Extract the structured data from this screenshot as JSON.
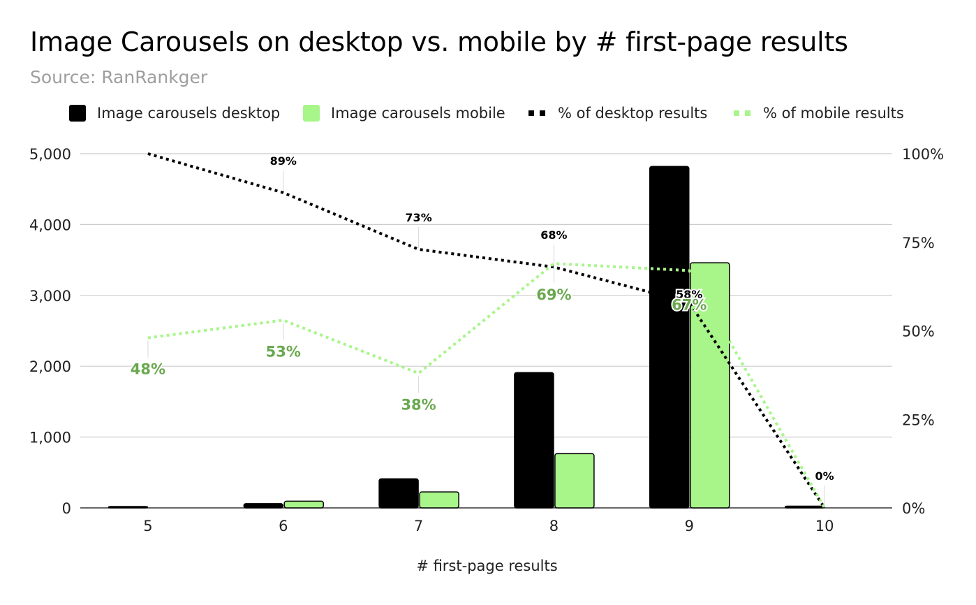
{
  "chart_data": {
    "type": "bar",
    "title": "Image Carousels on desktop vs. mobile by # first-page results",
    "subtitle": "Source: RanRankger",
    "xlabel": "# first-page results",
    "ylabel": "",
    "categories": [
      "5",
      "6",
      "7",
      "8",
      "9",
      "10"
    ],
    "ylim": [
      0,
      5000
    ],
    "y2lim": [
      0,
      100
    ],
    "yticks": [
      "0",
      "1,000",
      "2,000",
      "3,000",
      "4,000",
      "5,000"
    ],
    "y2ticks": [
      "0%",
      "25%",
      "50%",
      "75%",
      "100%"
    ],
    "grid": true,
    "legend_position": "top",
    "series": [
      {
        "name": "Image carousels desktop",
        "kind": "bar",
        "axis": "left",
        "color": "#000000",
        "values": [
          20,
          60,
          410,
          1910,
          4820,
          25
        ]
      },
      {
        "name": "Image carousels mobile",
        "kind": "bar",
        "axis": "left",
        "color": "#a8f58a",
        "values": [
          0,
          95,
          225,
          765,
          3460,
          0
        ]
      },
      {
        "name": "% of desktop results",
        "kind": "line",
        "axis": "right",
        "color": "#000000",
        "values": [
          100,
          89,
          73,
          68,
          58,
          0
        ],
        "labels": [
          "",
          "89%",
          "73%",
          "68%",
          "58%",
          "0%"
        ]
      },
      {
        "name": "% of mobile results",
        "kind": "line",
        "axis": "right",
        "color": "#a8f58a",
        "label_color": "#6aa84f",
        "values": [
          48,
          53,
          38,
          69,
          67,
          0
        ],
        "labels": [
          "48%",
          "53%",
          "38%",
          "69%",
          "67%",
          ""
        ]
      }
    ]
  }
}
